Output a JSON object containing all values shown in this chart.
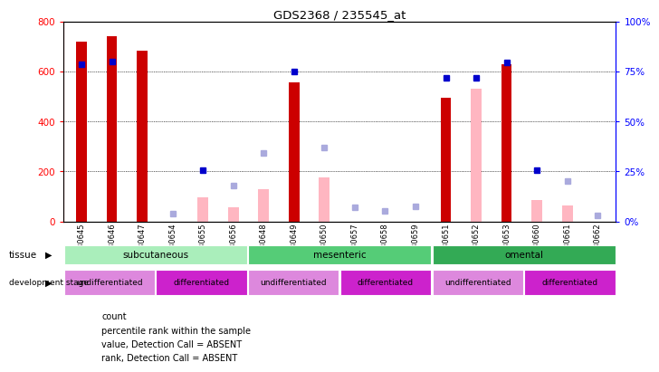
{
  "title": "GDS2368 / 235545_at",
  "samples": [
    "GSM30645",
    "GSM30646",
    "GSM30647",
    "GSM30654",
    "GSM30655",
    "GSM30656",
    "GSM30648",
    "GSM30649",
    "GSM30650",
    "GSM30657",
    "GSM30658",
    "GSM30659",
    "GSM30651",
    "GSM30652",
    "GSM30653",
    "GSM30660",
    "GSM30661",
    "GSM30662"
  ],
  "count_values": [
    720,
    742,
    684,
    null,
    null,
    null,
    null,
    555,
    null,
    null,
    null,
    null,
    495,
    null,
    630,
    null,
    null,
    null
  ],
  "count_absent_values": [
    null,
    null,
    null,
    null,
    95,
    55,
    130,
    null,
    175,
    null,
    null,
    null,
    null,
    530,
    null,
    85,
    65,
    null
  ],
  "rank_values": [
    630,
    640,
    null,
    null,
    205,
    null,
    null,
    600,
    null,
    null,
    null,
    null,
    575,
    575,
    635,
    205,
    null,
    null
  ],
  "rank_absent_values": [
    null,
    null,
    null,
    30,
    null,
    145,
    275,
    null,
    295,
    55,
    40,
    60,
    null,
    null,
    null,
    null,
    160,
    25
  ],
  "ylim_left": [
    0,
    800
  ],
  "ylim_right": [
    0,
    100
  ],
  "yticks_left": [
    0,
    200,
    400,
    600,
    800
  ],
  "yticks_right": [
    0,
    25,
    50,
    75,
    100
  ],
  "bar_width": 0.35,
  "count_color": "#CC0000",
  "count_absent_color": "#FFB6C1",
  "rank_color": "#0000CC",
  "rank_absent_color": "#AAAADD",
  "background_color": "#FFFFFF",
  "plot_bg_color": "#FFFFFF",
  "tissue_colors": [
    "#AAEEBB",
    "#55CC77",
    "#33AA55"
  ],
  "tissue_labels": [
    "subcutaneous",
    "mesenteric",
    "omental"
  ],
  "tissue_starts": [
    0,
    6,
    12
  ],
  "tissue_ends": [
    6,
    12,
    18
  ],
  "dev_colors": [
    "#DD88DD",
    "#CC22CC",
    "#DD88DD",
    "#CC22CC",
    "#DD88DD",
    "#CC22CC"
  ],
  "dev_labels": [
    "undifferentiated",
    "differentiated",
    "undifferentiated",
    "differentiated",
    "undifferentiated",
    "differentiated"
  ],
  "dev_starts": [
    0,
    3,
    6,
    9,
    12,
    15
  ],
  "dev_ends": [
    3,
    6,
    9,
    12,
    15,
    18
  ]
}
